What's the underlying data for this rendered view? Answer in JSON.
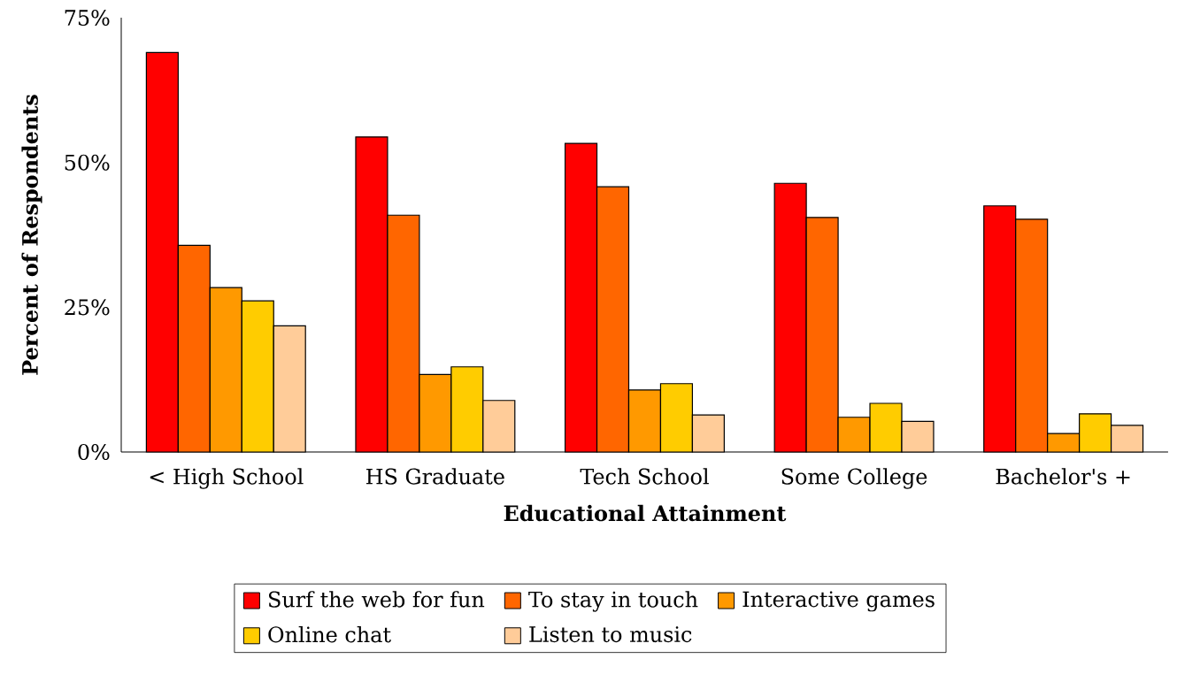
{
  "chart_data": {
    "type": "bar",
    "xlabel": "Educational Attainment",
    "ylabel": "Percent of Respondents",
    "categories": [
      "< High School",
      "HS Graduate",
      "Tech School",
      "Some College",
      "Bachelor's +"
    ],
    "series": [
      {
        "name": "Surf the web for fun",
        "color": "#ff0000",
        "values": [
          69.0,
          54.4,
          53.3,
          46.4,
          42.5
        ]
      },
      {
        "name": "To stay in touch",
        "color": "#ff6600",
        "values": [
          35.7,
          40.9,
          45.8,
          40.5,
          40.2
        ]
      },
      {
        "name": "Interactive games",
        "color": "#ff9900",
        "values": [
          28.4,
          13.4,
          10.7,
          6.0,
          3.2
        ]
      },
      {
        "name": "Online chat",
        "color": "#ffcc00",
        "values": [
          26.1,
          14.7,
          11.8,
          8.4,
          6.6
        ]
      },
      {
        "name": "Listen to music",
        "color": "#ffcc99",
        "values": [
          21.8,
          8.9,
          6.4,
          5.3,
          4.6
        ]
      }
    ],
    "ylim": [
      0,
      75
    ],
    "yticks": [
      {
        "value": 0,
        "label": "0%"
      },
      {
        "value": 25,
        "label": "25%"
      },
      {
        "value": 50,
        "label": "50%"
      },
      {
        "value": 75,
        "label": "75%"
      }
    ],
    "grid": false,
    "legend": "bottom"
  }
}
